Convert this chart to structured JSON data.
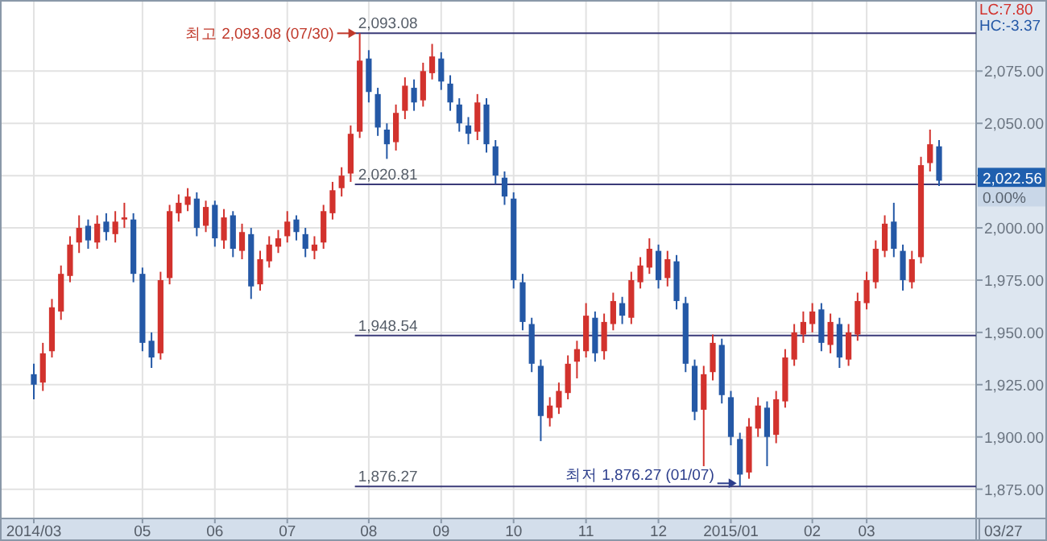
{
  "chart_data": {
    "type": "candlestick",
    "categories": [
      "2014/03",
      null,
      null,
      null,
      null,
      null,
      null,
      null,
      null,
      null,
      null,
      null,
      "05",
      null,
      null,
      null,
      null,
      null,
      null,
      null,
      "06",
      null,
      null,
      null,
      null,
      null,
      null,
      null,
      "07",
      null,
      null,
      null,
      null,
      null,
      null,
      null,
      null,
      "08",
      null,
      null,
      null,
      null,
      null,
      null,
      null,
      "09",
      null,
      null,
      null,
      null,
      null,
      null,
      null,
      "10",
      null,
      null,
      null,
      null,
      null,
      null,
      null,
      "11",
      null,
      null,
      null,
      null,
      null,
      null,
      null,
      "12",
      null,
      null,
      null,
      null,
      null,
      null,
      null,
      "2015/01",
      null,
      null,
      null,
      null,
      null,
      null,
      null,
      null,
      "02",
      null,
      null,
      null,
      null,
      null,
      "03",
      null,
      null,
      null,
      null,
      null,
      null,
      null,
      null
    ],
    "ohlc": [
      [
        1930,
        1935,
        1918,
        1925
      ],
      [
        1926,
        1945,
        1922,
        1940
      ],
      [
        1941,
        1966,
        1938,
        1962
      ],
      [
        1960,
        1982,
        1956,
        1978
      ],
      [
        1977,
        1996,
        1974,
        1992
      ],
      [
        1993,
        2006,
        1988,
        2000
      ],
      [
        2001,
        2004,
        1990,
        1994
      ],
      [
        1993,
        2006,
        1990,
        2002
      ],
      [
        2003,
        2007,
        1994,
        1998
      ],
      [
        1997,
        2008,
        1993,
        2003
      ],
      [
        2004,
        2012,
        2000,
        2005
      ],
      [
        2004,
        2007,
        1974,
        1978
      ],
      [
        1978,
        1981,
        1941,
        1945
      ],
      [
        1946,
        1950,
        1933,
        1938
      ],
      [
        1940,
        1979,
        1937,
        1975
      ],
      [
        1976,
        2011,
        1973,
        2008
      ],
      [
        2007,
        2016,
        2003,
        2012
      ],
      [
        2011,
        2019,
        2008,
        2015
      ],
      [
        2014,
        2017,
        1996,
        2000
      ],
      [
        2001,
        2013,
        1998,
        2010
      ],
      [
        2011,
        2013,
        1991,
        1995
      ],
      [
        1994,
        2009,
        1990,
        2005
      ],
      [
        2006,
        2008,
        1986,
        1990
      ],
      [
        1989,
        2002,
        1985,
        1998
      ],
      [
        1997,
        2000,
        1966,
        1972
      ],
      [
        1973,
        1989,
        1970,
        1985
      ],
      [
        1984,
        1996,
        1981,
        1992
      ],
      [
        1991,
        1999,
        1988,
        1995
      ],
      [
        1996,
        2008,
        1993,
        2003
      ],
      [
        2004,
        2006,
        1994,
        1998
      ],
      [
        1997,
        2000,
        1986,
        1990
      ],
      [
        1989,
        1996,
        1985,
        1992
      ],
      [
        1993,
        2011,
        1990,
        2008
      ],
      [
        2007,
        2022,
        2004,
        2018
      ],
      [
        2019,
        2029,
        2015,
        2025
      ],
      [
        2026,
        2049,
        2022,
        2045
      ],
      [
        2046,
        2093.08,
        2043,
        2080
      ],
      [
        2081,
        2085,
        2060,
        2065
      ],
      [
        2064,
        2067,
        2044,
        2048
      ],
      [
        2047,
        2050,
        2033,
        2040
      ],
      [
        2041,
        2059,
        2037,
        2055
      ],
      [
        2056,
        2072,
        2052,
        2068
      ],
      [
        2067,
        2071,
        2056,
        2060
      ],
      [
        2061,
        2079,
        2058,
        2075
      ],
      [
        2074,
        2088,
        2071,
        2082
      ],
      [
        2081,
        2084,
        2066,
        2070
      ],
      [
        2069,
        2073,
        2056,
        2060
      ],
      [
        2059,
        2062,
        2046,
        2050
      ],
      [
        2049,
        2053,
        2040,
        2045
      ],
      [
        2046,
        2064,
        2042,
        2060
      ],
      [
        2059,
        2062,
        2036,
        2040
      ],
      [
        2039,
        2042,
        2021,
        2025
      ],
      [
        2024,
        2027,
        2011,
        2015
      ],
      [
        2014,
        2017,
        1971,
        1975
      ],
      [
        1974,
        1978,
        1951,
        1955
      ],
      [
        1954,
        1957,
        1931,
        1935
      ],
      [
        1934,
        1937,
        1898,
        1910
      ],
      [
        1909,
        1919,
        1905,
        1915
      ],
      [
        1914,
        1926,
        1911,
        1922
      ],
      [
        1921,
        1939,
        1918,
        1935
      ],
      [
        1936,
        1946,
        1928,
        1942
      ],
      [
        1941,
        1964,
        1938,
        1958
      ],
      [
        1957,
        1960,
        1936,
        1940
      ],
      [
        1941,
        1959,
        1937,
        1955
      ],
      [
        1954,
        1969,
        1951,
        1965
      ],
      [
        1964,
        1967,
        1954,
        1958
      ],
      [
        1957,
        1979,
        1954,
        1975
      ],
      [
        1974,
        1986,
        1971,
        1982
      ],
      [
        1981,
        1995,
        1978,
        1990
      ],
      [
        1989,
        1992,
        1971,
        1975
      ],
      [
        1976,
        1989,
        1972,
        1985
      ],
      [
        1984,
        1987,
        1961,
        1965
      ],
      [
        1964,
        1967,
        1931,
        1935
      ],
      [
        1934,
        1937,
        1908,
        1912
      ],
      [
        1913,
        1934,
        1886,
        1930
      ],
      [
        1931,
        1949,
        1927,
        1945
      ],
      [
        1944,
        1947,
        1916,
        1920
      ],
      [
        1919,
        1922,
        1896,
        1900
      ],
      [
        1899,
        1902,
        1876.27,
        1882
      ],
      [
        1883,
        1909,
        1880,
        1905
      ],
      [
        1904,
        1919,
        1900,
        1915
      ],
      [
        1914,
        1917,
        1886,
        1900
      ],
      [
        1901,
        1922,
        1897,
        1918
      ],
      [
        1917,
        1942,
        1914,
        1938
      ],
      [
        1937,
        1954,
        1934,
        1950
      ],
      [
        1949,
        1960,
        1945,
        1955
      ],
      [
        1954,
        1964,
        1950,
        1960
      ],
      [
        1961,
        1964,
        1941,
        1945
      ],
      [
        1944,
        1959,
        1940,
        1955
      ],
      [
        1954,
        1957,
        1933,
        1938
      ],
      [
        1937,
        1954,
        1934,
        1950
      ],
      [
        1949,
        1969,
        1946,
        1965
      ],
      [
        1964,
        1979,
        1961,
        1975
      ],
      [
        1974,
        1994,
        1971,
        1990
      ],
      [
        1989,
        2006,
        1986,
        2002
      ],
      [
        2003,
        2012,
        1986,
        1990
      ],
      [
        1989,
        1992,
        1970,
        1975
      ],
      [
        1974,
        1989,
        1971,
        1985
      ],
      [
        1986,
        2034,
        1983,
        2030
      ],
      [
        2031,
        2047,
        2027,
        2040
      ],
      [
        2039,
        2042,
        2020,
        2022.56
      ]
    ],
    "ylim": [
      1861,
      2109
    ],
    "yticks": [
      {
        "value": 1875,
        "label": "1,875.00"
      },
      {
        "value": 1900,
        "label": "1,900.00"
      },
      {
        "value": 1925,
        "label": "1,925.00"
      },
      {
        "value": 1950,
        "label": "1,950.00"
      },
      {
        "value": 1975,
        "label": "1,975.00"
      },
      {
        "value": 2000,
        "label": "2,000.00"
      },
      {
        "value": 2025,
        "label": null
      },
      {
        "value": 2050,
        "label": "2,050.00"
      },
      {
        "value": 2075,
        "label": "2,075.00"
      }
    ],
    "ref_lines": [
      {
        "axis": "y",
        "value": 2093.08,
        "label": "2,093.08",
        "color": "#3a3a78"
      },
      {
        "axis": "y",
        "value": 2020.81,
        "label": "2,020.81",
        "color": "#3a3a78"
      },
      {
        "axis": "y",
        "value": 1948.54,
        "label": "1,948.54",
        "color": "#3a3a78"
      },
      {
        "axis": "y",
        "value": 1876.27,
        "label": "1,876.27",
        "color": "#3a3a78"
      }
    ],
    "annotations": [
      "최고 2,093.08 (07/30)",
      "최저 1,876.27 (01/07)",
      "LC:7.80",
      "HC:-3.37",
      "2,022.56",
      "0.00%",
      "03/27"
    ],
    "grid": true
  }
}
